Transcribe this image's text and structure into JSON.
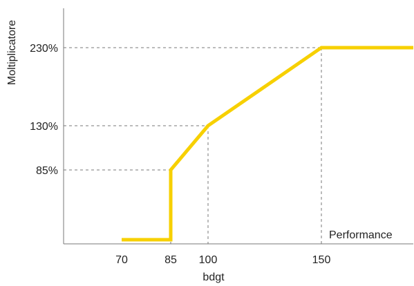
{
  "chart_data": {
    "type": "line",
    "xlabel": "bdgt",
    "ylabel": "Moltiplicatore",
    "annotation": "Performance",
    "x_ticks": [
      {
        "value": 70,
        "label": "70"
      },
      {
        "value": 85,
        "label": "85"
      },
      {
        "value": 100,
        "label": "100"
      },
      {
        "value": 150,
        "label": "150"
      }
    ],
    "y_ticks": [
      {
        "value": 85,
        "label": "85%"
      },
      {
        "value": 130,
        "label": "130%"
      },
      {
        "value": 230,
        "label": "230%"
      }
    ],
    "guides": [
      {
        "x": 85,
        "y": 85
      },
      {
        "x": 100,
        "y": 130
      },
      {
        "x": 150,
        "y": 230
      }
    ],
    "series": [
      {
        "color": "#f7d000",
        "points": [
          {
            "x": 70,
            "y": 0
          },
          {
            "x": 85,
            "y": 0
          },
          {
            "x": 85,
            "y": 85
          },
          {
            "x": 100,
            "y": 130
          },
          {
            "x": 150,
            "y": 230
          },
          {
            "x": 190,
            "y": 230
          }
        ]
      }
    ],
    "grid": false,
    "guide_style": "dashed"
  }
}
